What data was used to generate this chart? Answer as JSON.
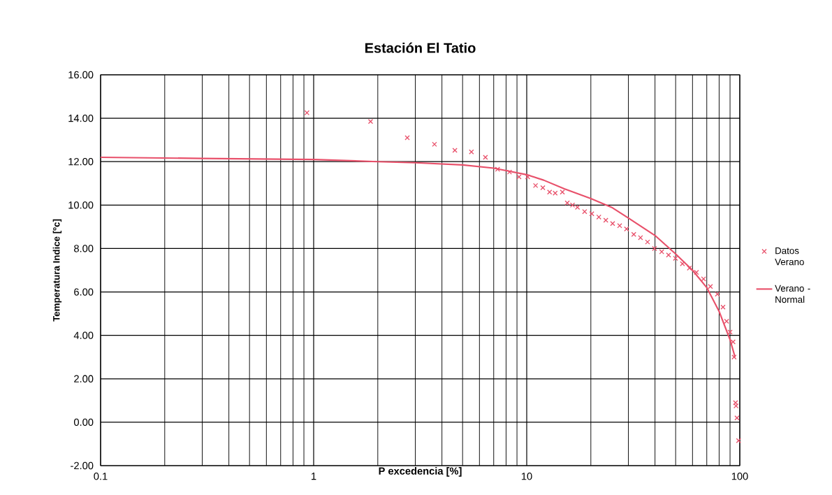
{
  "chart_data": {
    "type": "scatter",
    "title": "Estación El Tatio",
    "xlabel": "P excedencia [%]",
    "ylabel": "Temperatura Indice [ºc]",
    "log": "x",
    "grid": true,
    "legend": "right",
    "xlim": [
      0.1,
      100
    ],
    "xticks": [
      0.1,
      1,
      10,
      100
    ],
    "ylim": [
      -2,
      16
    ],
    "yticks": [
      {
        "value": -2,
        "label": "-2.00"
      },
      {
        "value": 0,
        "label": "0.00"
      },
      {
        "value": 2,
        "label": "2.00"
      },
      {
        "value": 4,
        "label": "4.00"
      },
      {
        "value": 6,
        "label": "6.00"
      },
      {
        "value": 8,
        "label": "8.00"
      },
      {
        "value": 10,
        "label": "10.00"
      },
      {
        "value": 12,
        "label": "12.00"
      },
      {
        "value": 14,
        "label": "14.00"
      },
      {
        "value": 16,
        "label": "16.00"
      }
    ],
    "series": [
      {
        "name": "Datos Verano",
        "type": "scatter",
        "marker": "cross",
        "color": "#e8506a",
        "x": [
          0.93,
          1.85,
          2.75,
          3.69,
          4.6,
          5.5,
          6.4,
          7.3,
          8.3,
          9.2,
          10.1,
          11.0,
          11.9,
          12.8,
          13.6,
          14.7,
          15.5,
          16.4,
          17.3,
          18.7,
          20.2,
          21.8,
          23.5,
          25.3,
          27.3,
          29.4,
          31.8,
          34.2,
          36.9,
          39.8,
          43,
          46.3,
          49.9,
          53.8,
          58,
          62.6,
          67.6,
          72.8,
          78.5,
          83.4,
          86.7,
          90,
          93,
          94,
          95.5,
          96,
          97,
          98.7
        ],
        "values": [
          14.25,
          13.85,
          13.1,
          12.8,
          12.52,
          12.45,
          12.2,
          11.65,
          11.52,
          11.3,
          11.3,
          10.9,
          10.8,
          10.6,
          10.55,
          10.6,
          10.1,
          10.0,
          9.9,
          9.7,
          9.6,
          9.45,
          9.3,
          9.15,
          9.05,
          8.9,
          8.65,
          8.5,
          8.3,
          8.0,
          7.85,
          7.7,
          7.55,
          7.3,
          7.1,
          6.9,
          6.6,
          6.25,
          5.9,
          5.3,
          4.65,
          4.15,
          3.7,
          3.0,
          0.9,
          0.75,
          0.2,
          -0.85
        ]
      },
      {
        "name": "Verano - Normal",
        "type": "line",
        "marker": "none",
        "line_style": "solid",
        "color": "#e8506a",
        "x": [
          0.1,
          0.3,
          1,
          2,
          3,
          5,
          7,
          10,
          12,
          15,
          20,
          25,
          30,
          40,
          50,
          60,
          70,
          80,
          90,
          95
        ],
        "values": [
          12.2,
          12.15,
          12.1,
          12.0,
          11.95,
          11.85,
          11.7,
          11.4,
          11.15,
          10.75,
          10.3,
          9.9,
          9.4,
          8.6,
          7.75,
          7.0,
          6.2,
          5.1,
          3.8,
          3.0
        ]
      }
    ]
  }
}
